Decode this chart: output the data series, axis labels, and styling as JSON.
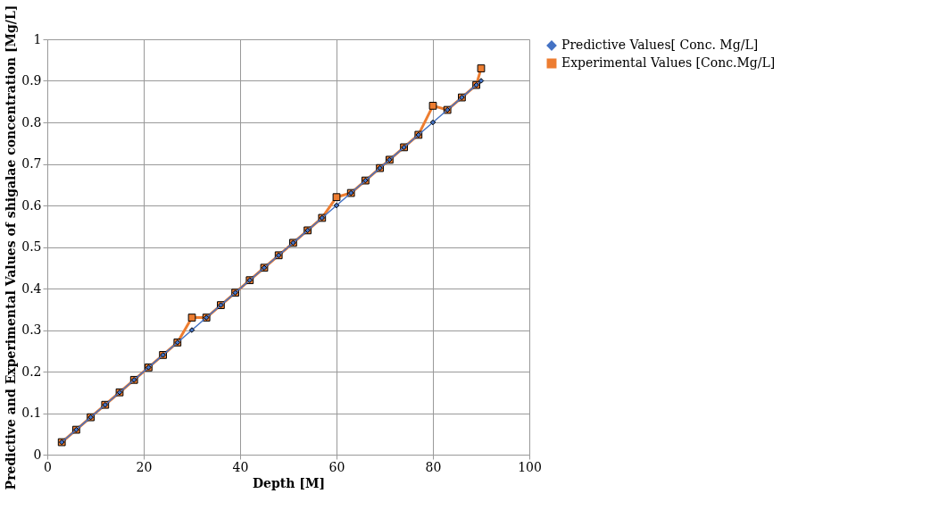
{
  "chart_data": {
    "type": "line",
    "xlabel": "Depth [M]",
    "ylabel": "Predictive and Experimental Values of shigalae concentration [Mg/L]",
    "x": [
      3,
      6,
      9,
      12,
      15,
      18,
      21,
      24,
      27,
      30,
      33,
      36,
      39,
      42,
      45,
      48,
      51,
      54,
      57,
      60,
      63,
      66,
      69,
      71,
      74,
      77,
      80,
      83,
      86,
      89,
      90
    ],
    "series": [
      {
        "name": "Predictive Values[ Conc. Mg/L]",
        "color": "#4472c4",
        "marker": "diamond",
        "values": [
          0.03,
          0.06,
          0.09,
          0.12,
          0.15,
          0.18,
          0.21,
          0.24,
          0.27,
          0.3,
          0.33,
          0.36,
          0.39,
          0.42,
          0.45,
          0.48,
          0.51,
          0.54,
          0.57,
          0.6,
          0.63,
          0.66,
          0.69,
          0.71,
          0.74,
          0.77,
          0.8,
          0.83,
          0.86,
          0.89,
          0.9
        ]
      },
      {
        "name": "Experimental Values [Conc.Mg/L]",
        "color": "#ed7d31",
        "marker": "square",
        "values": [
          0.03,
          0.06,
          0.09,
          0.12,
          0.15,
          0.18,
          0.21,
          0.24,
          0.27,
          0.33,
          0.33,
          0.36,
          0.39,
          0.42,
          0.45,
          0.48,
          0.51,
          0.54,
          0.57,
          0.62,
          0.63,
          0.66,
          0.69,
          0.71,
          0.74,
          0.77,
          0.84,
          0.83,
          0.86,
          0.89,
          0.93
        ]
      }
    ],
    "xlim": [
      0,
      100
    ],
    "xticks": [
      0,
      20,
      40,
      60,
      80,
      100
    ],
    "ylim": [
      0,
      1
    ],
    "yticks": [
      0,
      0.1,
      0.2,
      0.3,
      0.4,
      0.5,
      0.6,
      0.7,
      0.8,
      0.9,
      1
    ],
    "grid": true,
    "legend": "right",
    "line_style": "solid"
  }
}
